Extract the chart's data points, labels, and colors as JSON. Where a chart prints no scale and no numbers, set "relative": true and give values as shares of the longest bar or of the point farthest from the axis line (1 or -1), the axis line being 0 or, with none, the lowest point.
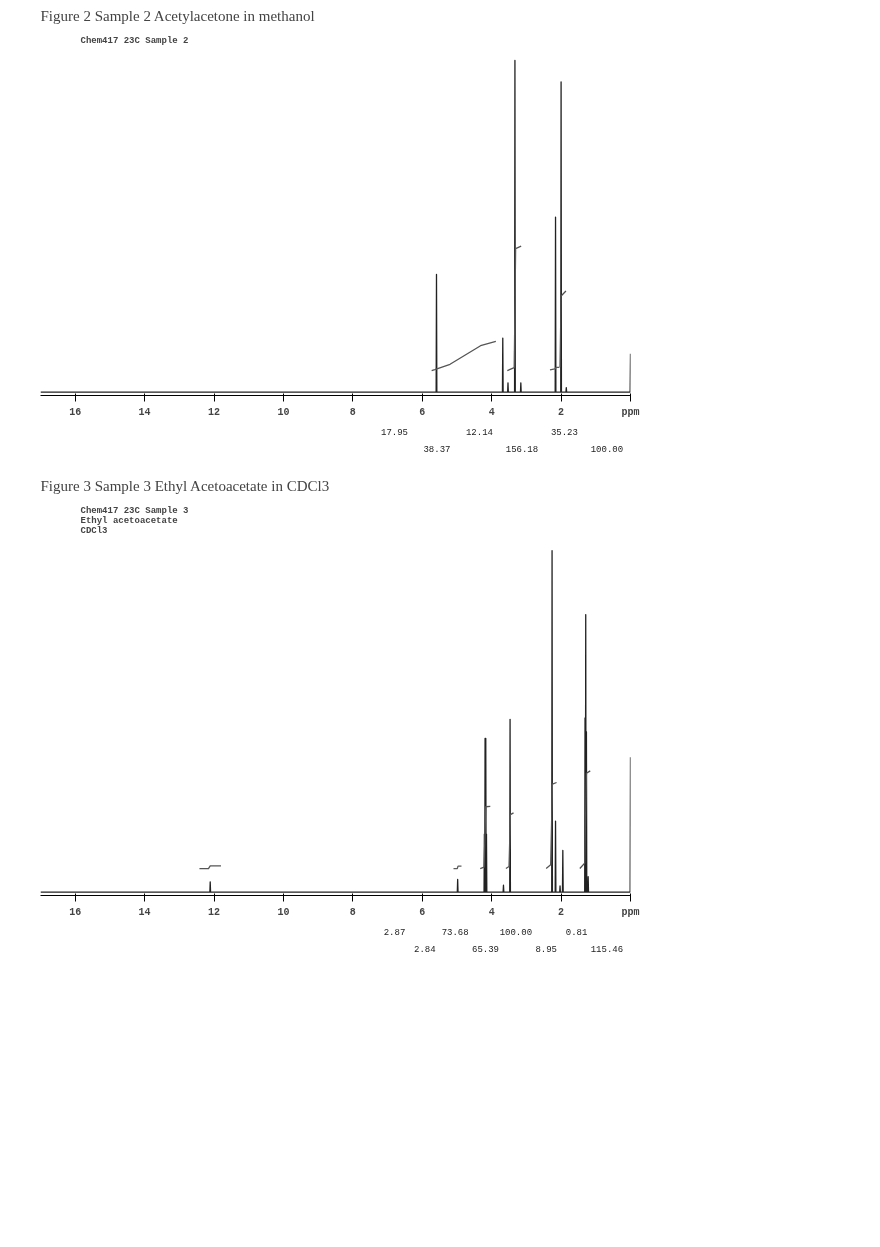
{
  "chart_data": [
    {
      "type": "line",
      "title": "Figure 2 Sample 2 Acetylacetone in methanol",
      "subtitle": "Chem417 23C Sample 2",
      "relative": true,
      "xlim": [
        17,
        0
      ],
      "xticks": [
        16,
        14,
        12,
        10,
        8,
        6,
        4,
        2,
        {
          "value": 0,
          "label": "ppm"
        }
      ],
      "series": [
        {
          "color": "#222222",
          "x": [
            17,
            5.6,
            5.59,
            5.58,
            3.69,
            3.68,
            3.67,
            3.54,
            3.53,
            3.52,
            3.34,
            3.33,
            3.32,
            3.17,
            3.16,
            3.15,
            2.17,
            2.16,
            2.15,
            2.01,
            2.0,
            1.99,
            1.86,
            1.85,
            1.84,
            0.01,
            0
          ],
          "values": [
            0,
            0,
            0.355,
            0,
            0,
            0.163,
            0,
            0,
            0.028,
            0,
            0,
            1,
            0,
            0,
            0.028,
            0,
            0,
            0.528,
            0,
            0,
            0.935,
            0,
            0,
            0.014,
            0,
            0,
            0.116
          ]
        },
        {
          "color": "#555555",
          "x": [
            5.73,
            5.64,
            5.2,
            4.76,
            4.32,
            3.88
          ],
          "values": [
            0.065,
            0.068,
            0.084,
            0.112,
            0.14,
            0.153
          ]
        },
        {
          "color": "#555555",
          "x": [
            3.55,
            3.35,
            3.31,
            3.15
          ],
          "values": [
            0.065,
            0.074,
            0.433,
            0.44
          ]
        },
        {
          "color": "#5a5a5a",
          "x": [
            2.32,
            2.18,
            2.14,
            2.05
          ],
          "values": [
            0.067,
            0.07,
            0.075,
            0.075
          ]
        },
        {
          "color": "#4e4e4e",
          "x": [
            2.03,
            2.0,
            1.86
          ],
          "values": [
            0.075,
            0.29,
            0.305
          ]
        }
      ],
      "annotations": [
        "17.95",
        "38.37",
        "12.14",
        "156.18",
        "35.23",
        "100.00"
      ]
    },
    {
      "type": "line",
      "title": "Figure 3 Sample 3 Ethyl Acetoacetate in CDCl3",
      "subtitle": "Chem417 23C Sample 3\nEthyl acetoacetate\nCDCl3",
      "relative": true,
      "xlim": [
        17,
        0
      ],
      "xticks": [
        16,
        14,
        12,
        10,
        8,
        6,
        4,
        2,
        {
          "value": 0,
          "label": "ppm"
        }
      ],
      "series": [
        {
          "color": "#222222",
          "x": [
            17,
            12.12,
            12.11,
            12.1,
            4.99,
            4.98,
            4.97,
            4.22,
            4.21,
            4.2,
            4.19,
            4.18,
            4.17,
            4.16,
            4.15,
            4.14,
            3.67,
            3.66,
            3.65,
            3.48,
            3.47,
            3.46,
            2.27,
            2.26,
            2.25,
            2.17,
            2.16,
            2.15,
            2.04,
            2.03,
            2.02,
            1.96,
            1.95,
            1.94,
            1.32,
            1.31,
            1.3,
            1.29,
            1.28,
            1.27,
            1.26,
            1.23,
            1.22,
            1.21,
            0.01,
            0
          ],
          "values": [
            0,
            0,
            0.03,
            0,
            0,
            0.037,
            0,
            0,
            0.17,
            0,
            0.45,
            0,
            0.45,
            0,
            0.17,
            0,
            0,
            0.02,
            0,
            0,
            0.506,
            0,
            0,
            1,
            0,
            0,
            0.208,
            0,
            0,
            0.018,
            0,
            0,
            0.122,
            0,
            0,
            0.51,
            0,
            0.813,
            0,
            0.47,
            0,
            0,
            0.045,
            0,
            0,
            0.395
          ]
        },
        {
          "color": "#555555",
          "x": [
            12.42,
            12.16,
            12.11,
            11.8
          ],
          "values": [
            0.069,
            0.069,
            0.077,
            0.077
          ]
        },
        {
          "color": "#5c5c5c",
          "x": [
            5.1,
            4.99,
            4.97,
            4.87
          ],
          "values": [
            0.069,
            0.069,
            0.076,
            0.076
          ]
        },
        {
          "color": "#555555",
          "x": [
            4.33,
            4.22,
            4.17,
            4.04
          ],
          "values": [
            0.069,
            0.073,
            0.25,
            0.251
          ]
        },
        {
          "color": "#555555",
          "x": [
            3.59,
            3.5,
            3.46,
            3.37
          ],
          "values": [
            0.069,
            0.075,
            0.227,
            0.232
          ]
        },
        {
          "color": "#555555",
          "x": [
            2.43,
            2.3,
            2.25,
            2.13
          ],
          "values": [
            0.069,
            0.08,
            0.316,
            0.321
          ]
        },
        {
          "color": "#4f4f4f",
          "x": [
            1.46,
            1.32,
            1.27,
            1.16
          ],
          "values": [
            0.069,
            0.085,
            0.348,
            0.355
          ]
        }
      ],
      "annotations": [
        "2.87",
        "2.84",
        "73.68",
        "65.39",
        "100.00",
        "8.95",
        "0.81",
        "115.46"
      ]
    }
  ]
}
